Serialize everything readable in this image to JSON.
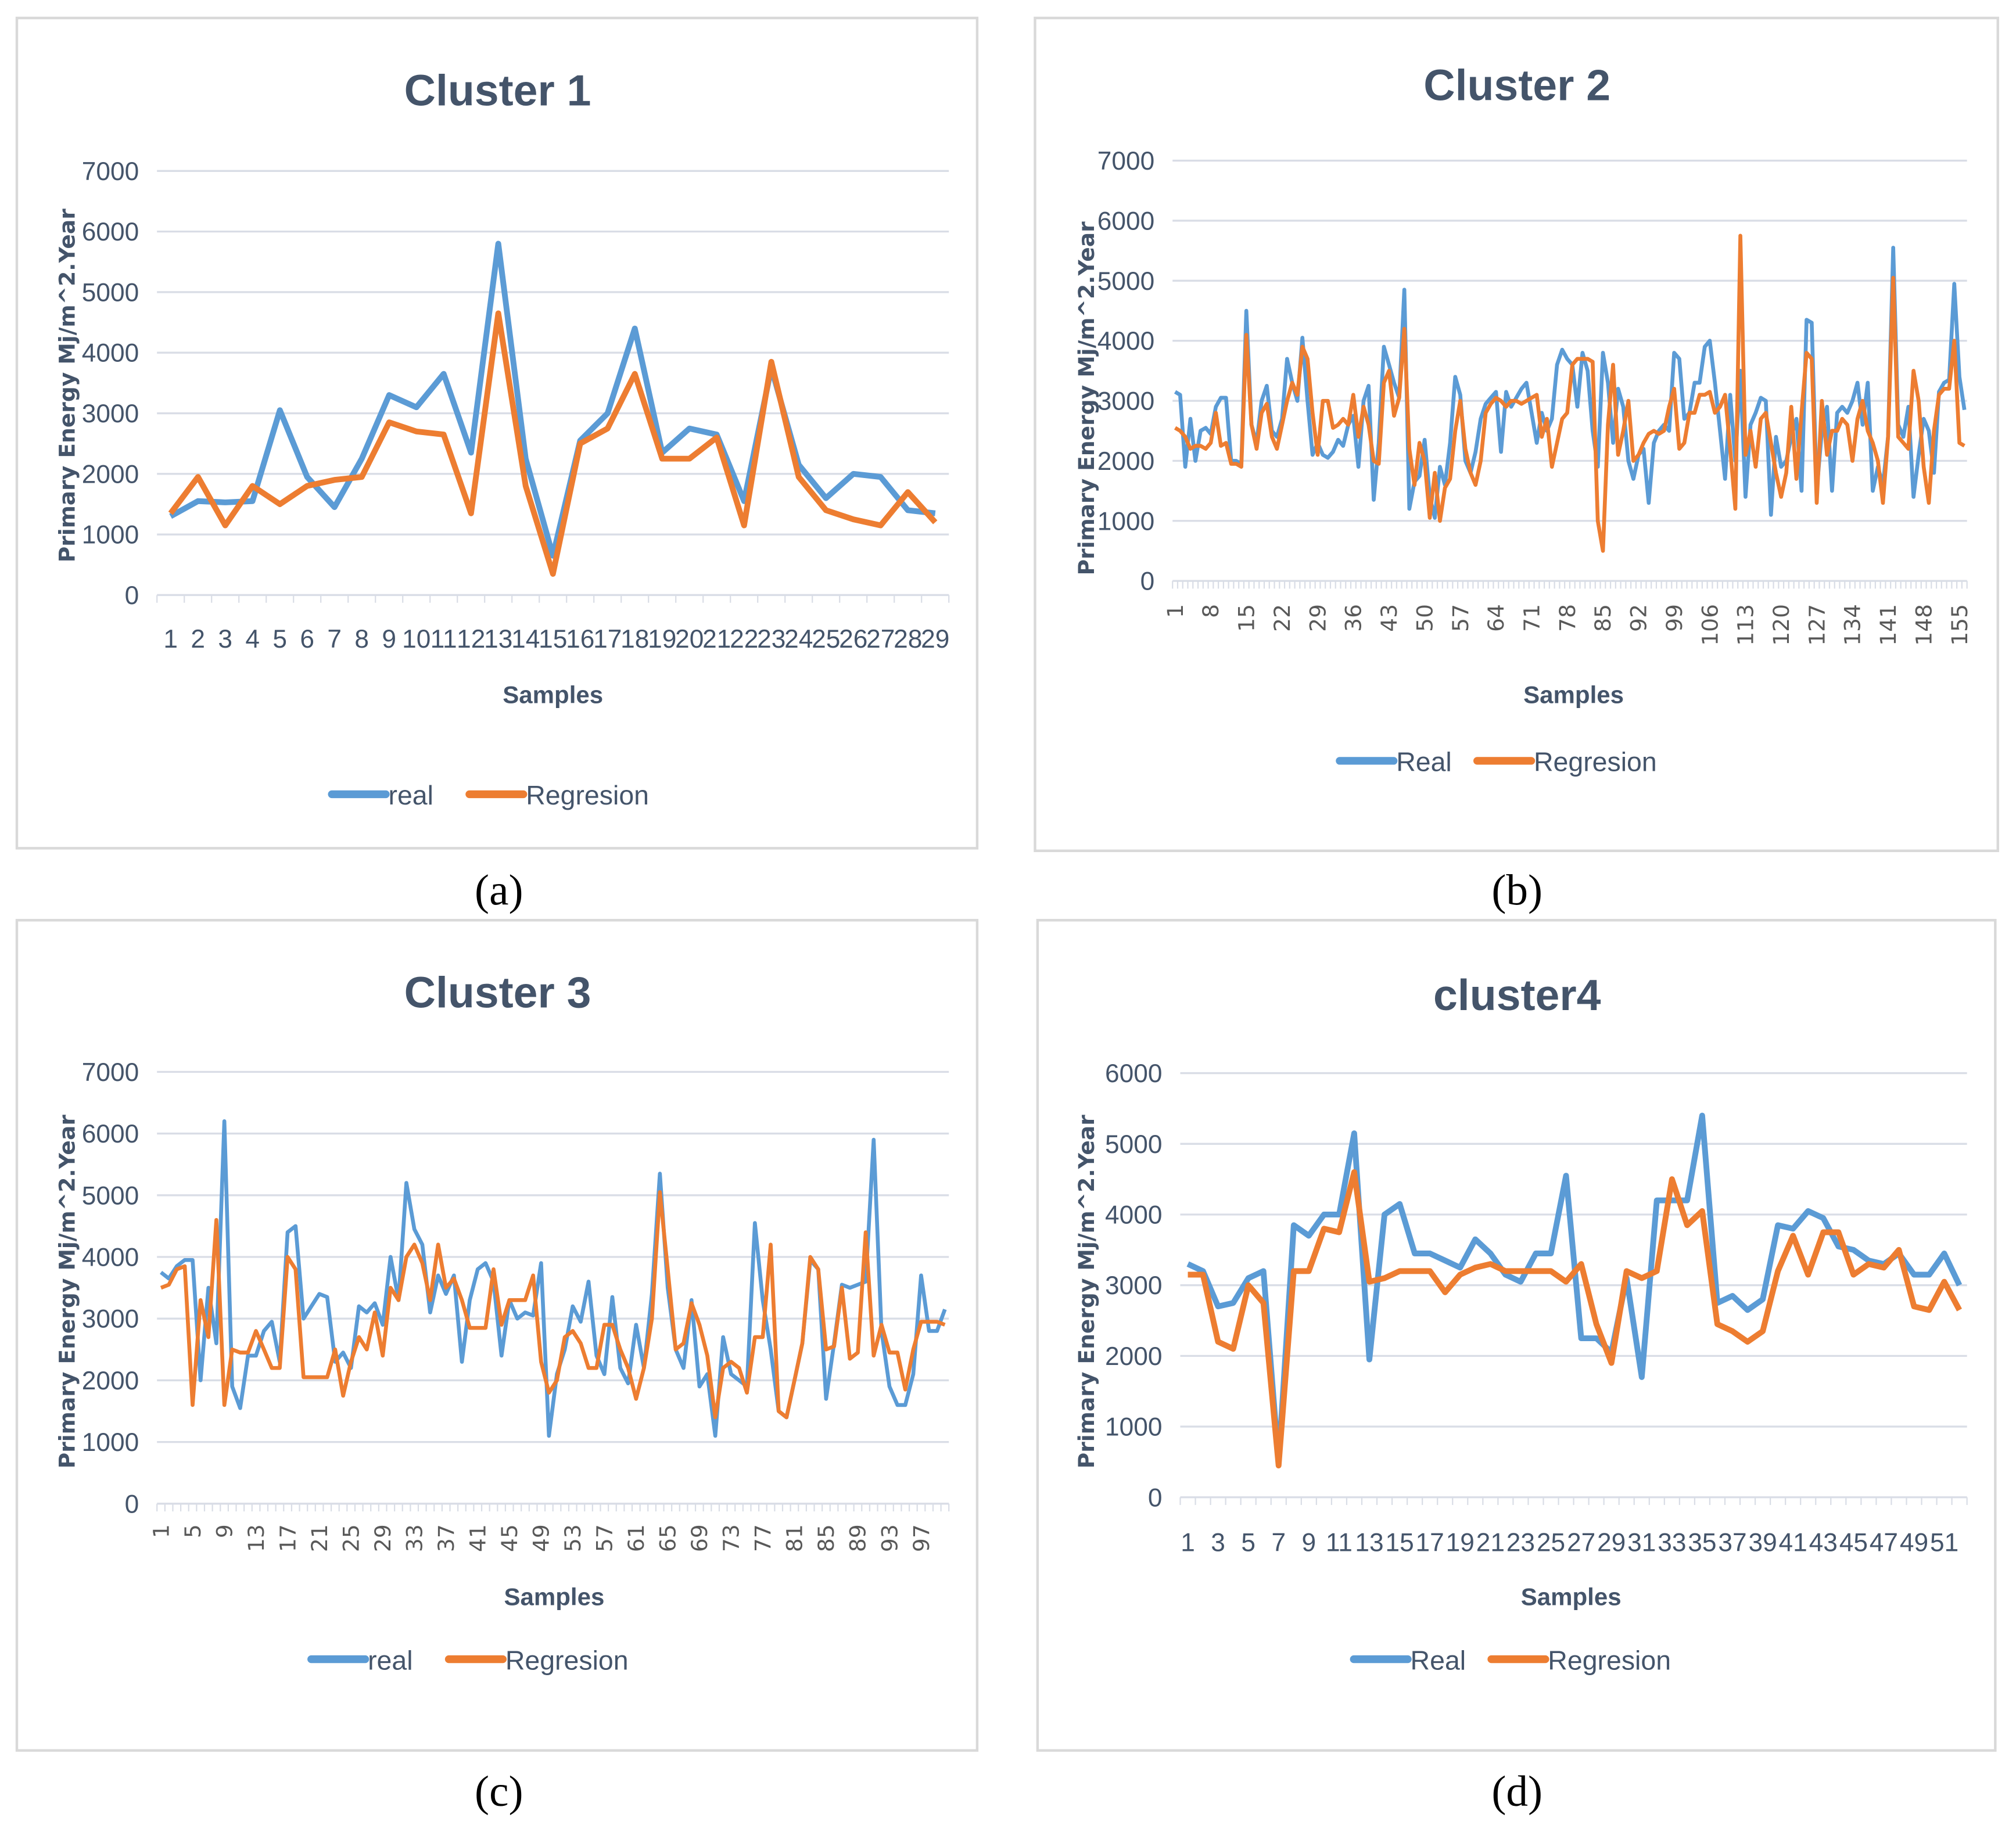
{
  "chart_data": [
    {
      "type": "line",
      "panel_label": "(a)",
      "title": "Cluster 1",
      "xlabel": "Samples",
      "ylabel": "Primary Energy Mj/m^2.Year",
      "ylim": [
        0,
        7000
      ],
      "yticks": [
        0,
        1000,
        2000,
        3000,
        4000,
        5000,
        6000,
        7000
      ],
      "x_tick_labels": [
        "1",
        "2",
        "3",
        "4",
        "5",
        "6",
        "7",
        "8",
        "9",
        "10",
        "11",
        "12",
        "13",
        "14",
        "15",
        "16",
        "17",
        "18",
        "19",
        "20",
        "21",
        "22",
        "23",
        "24",
        "25",
        "26",
        "27",
        "28",
        "29"
      ],
      "x_tick_orientation": "horizontal",
      "grid": true,
      "legend": "bottom",
      "series": [
        {
          "name": "real",
          "color": "#5b9bd5",
          "values": [
            1300,
            1550,
            1530,
            1550,
            3050,
            1950,
            1450,
            2250,
            3300,
            3100,
            3650,
            2350,
            5800,
            2250,
            650,
            2550,
            3000,
            4400,
            2350,
            2750,
            2650,
            1550,
            3750,
            2150,
            1600,
            2000,
            1950,
            1400,
            1350
          ]
        },
        {
          "name": "Regresion",
          "color": "#ed7d31",
          "values": [
            1350,
            1950,
            1150,
            1800,
            1500,
            1800,
            1900,
            1950,
            2850,
            2700,
            2650,
            1350,
            4650,
            1800,
            350,
            2500,
            2750,
            3650,
            2250,
            2250,
            2600,
            1150,
            3850,
            1950,
            1400,
            1250,
            1150,
            1700,
            1200
          ]
        }
      ]
    },
    {
      "type": "line",
      "panel_label": "(b)",
      "title": "Cluster 2",
      "xlabel": "Samples",
      "ylabel": "Primary Energy Mj/m^2.Year",
      "ylim": [
        0,
        7000
      ],
      "yticks": [
        0,
        1000,
        2000,
        3000,
        4000,
        5000,
        6000,
        7000
      ],
      "x_tick_labels": [
        "1",
        "8",
        "15",
        "22",
        "29",
        "36",
        "43",
        "50",
        "57",
        "64",
        "71",
        "78",
        "85",
        "92",
        "99",
        "106",
        "113",
        "120",
        "127",
        "134",
        "141",
        "148",
        "155"
      ],
      "x_tick_orientation": "vertical",
      "grid": true,
      "legend": "bottom",
      "series": [
        {
          "name": "Real",
          "color": "#5b9bd5",
          "values": [
            3150,
            3100,
            1900,
            2700,
            2000,
            2500,
            2550,
            2450,
            2900,
            3050,
            3050,
            2000,
            2000,
            1950,
            4500,
            2600,
            2300,
            3000,
            3250,
            2500,
            2400,
            2700,
            3700,
            3300,
            3000,
            4050,
            3000,
            2100,
            2300,
            2100,
            2050,
            2150,
            2350,
            2250,
            2600,
            2750,
            1900,
            3000,
            3250,
            1350,
            2300,
            3900,
            3600,
            3300,
            3050,
            4850,
            1200,
            1650,
            1750,
            2350,
            1400,
            1050,
            1900,
            1600,
            2300,
            3400,
            3100,
            2000,
            1800,
            2150,
            2700,
            2950,
            3050,
            3150,
            2150,
            3150,
            2900,
            3050,
            3200,
            3300,
            2800,
            2300,
            2800,
            2500,
            2700,
            3600,
            3850,
            3700,
            3600,
            2900,
            3800,
            3500,
            2500,
            1900,
            3800,
            3300,
            2300,
            3200,
            2900,
            2000,
            1700,
            2100,
            2200,
            1300,
            2300,
            2500,
            2600,
            2500,
            3800,
            3700,
            2700,
            2800,
            3300,
            3300,
            3900,
            4000,
            3300,
            2500,
            1700,
            3100,
            2000,
            3500,
            1400,
            2600,
            2800,
            3050,
            3000,
            1100,
            2400,
            1900,
            2000,
            2400,
            2700,
            1500,
            4350,
            4300,
            1500,
            2500,
            2900,
            1500,
            2800,
            2900,
            2800,
            3000,
            3300,
            2600,
            3300,
            1500,
            1900,
            1600,
            2400,
            5550,
            2600,
            2400,
            2900,
            1400,
            2100,
            2700,
            2500,
            1800,
            3150,
            3300,
            3350,
            4950,
            3400,
            2850
          ]
        },
        {
          "name": "Regresion",
          "color": "#ed7d31",
          "values": [
            2550,
            2500,
            2400,
            2200,
            2250,
            2250,
            2200,
            2300,
            2800,
            2250,
            2300,
            1950,
            1950,
            1900,
            4100,
            2600,
            2200,
            2800,
            2950,
            2400,
            2200,
            2600,
            3000,
            3300,
            3100,
            3900,
            3700,
            2800,
            2100,
            3000,
            3000,
            2550,
            2600,
            2700,
            2600,
            3100,
            2400,
            2900,
            2600,
            2000,
            1950,
            3300,
            3500,
            2750,
            3050,
            4200,
            2200,
            1600,
            2300,
            2000,
            1050,
            1800,
            1000,
            1550,
            1700,
            2500,
            3000,
            2200,
            1800,
            1600,
            2000,
            2800,
            2950,
            3050,
            3000,
            2900,
            3000,
            3000,
            2950,
            3000,
            3050,
            3100,
            2400,
            2700,
            1900,
            2300,
            2700,
            2800,
            3600,
            3700,
            3700,
            3700,
            3650,
            1000,
            500,
            2600,
            3600,
            2100,
            2500,
            3000,
            2000,
            2100,
            2300,
            2450,
            2500,
            2450,
            2500,
            2900,
            3200,
            2200,
            2300,
            2800,
            2800,
            3100,
            3100,
            3150,
            2800,
            2900,
            3100,
            2200,
            1200,
            5750,
            2100,
            2500,
            1900,
            2700,
            2800,
            2300,
            1800,
            1400,
            1800,
            2900,
            1700,
            2800,
            3800,
            3700,
            1300,
            3000,
            2100,
            2500,
            2500,
            2700,
            2600,
            2000,
            2700,
            3000,
            2500,
            2300,
            2000,
            1300,
            2400,
            5050,
            2400,
            2300,
            2200,
            3500,
            3000,
            1900,
            1300,
            2500,
            3100,
            3200,
            3200,
            4000,
            2300,
            2250
          ]
        }
      ]
    },
    {
      "type": "line",
      "panel_label": "(c)",
      "title": "Cluster 3",
      "xlabel": "Samples",
      "ylabel": "Primary Energy Mj/m^2.Year",
      "ylim": [
        0,
        7000
      ],
      "yticks": [
        0,
        1000,
        2000,
        3000,
        4000,
        5000,
        6000,
        7000
      ],
      "x_tick_labels": [
        "1",
        "5",
        "9",
        "13",
        "17",
        "21",
        "25",
        "29",
        "33",
        "37",
        "41",
        "45",
        "49",
        "53",
        "57",
        "61",
        "65",
        "69",
        "73",
        "77",
        "81",
        "85",
        "89",
        "93",
        "97"
      ],
      "x_tick_orientation": "vertical",
      "grid": true,
      "legend": "bottom",
      "series": [
        {
          "name": "real",
          "color": "#5b9bd5",
          "values": [
            3750,
            3650,
            3850,
            3950,
            3950,
            2000,
            3500,
            2600,
            6200,
            1900,
            1550,
            2400,
            2400,
            2800,
            2950,
            2300,
            4400,
            4500,
            3000,
            3200,
            3400,
            3350,
            2300,
            2450,
            2200,
            3200,
            3100,
            3250,
            2900,
            4000,
            3300,
            5200,
            4450,
            4200,
            3100,
            3700,
            3400,
            3700,
            2300,
            3300,
            3800,
            3900,
            3600,
            2400,
            3300,
            3000,
            3100,
            3050,
            3900,
            1100,
            2100,
            2500,
            3200,
            2950,
            3600,
            2400,
            2100,
            3350,
            2200,
            1950,
            2900,
            2200,
            3400,
            5350,
            3500,
            2500,
            2200,
            3300,
            1900,
            2100,
            1100,
            2700,
            2100,
            2000,
            1900,
            4550,
            3300,
            2500,
            1500,
            1400,
            2000,
            2600,
            3950,
            3800,
            1700,
            2600,
            3550,
            3500,
            3550,
            3600,
            5900,
            2800,
            1900,
            1600,
            1600,
            2100,
            3700,
            2800,
            2800,
            3150
          ]
        },
        {
          "name": "Regresion",
          "color": "#ed7d31",
          "values": [
            3500,
            3550,
            3800,
            3850,
            1600,
            3300,
            2700,
            4600,
            1600,
            2500,
            2450,
            2450,
            2800,
            2500,
            2200,
            2200,
            4000,
            3800,
            2050,
            2050,
            2050,
            2050,
            2500,
            1750,
            2300,
            2700,
            2500,
            3100,
            2400,
            3500,
            3300,
            4000,
            4200,
            3900,
            3300,
            4200,
            3500,
            3650,
            3300,
            2850,
            2850,
            2850,
            3800,
            2900,
            3300,
            3300,
            3300,
            3700,
            2300,
            1800,
            2000,
            2700,
            2800,
            2600,
            2200,
            2200,
            2900,
            2900,
            2500,
            2200,
            1700,
            2200,
            3000,
            5050,
            3800,
            2500,
            2600,
            3250,
            2900,
            2400,
            1400,
            2200,
            2300,
            2200,
            1800,
            2700,
            2700,
            4200,
            1500,
            1400,
            2000,
            2600,
            4000,
            3800,
            2500,
            2550,
            3500,
            2350,
            2450,
            4400,
            2400,
            2900,
            2450,
            2450,
            1850,
            2500,
            2950,
            2950,
            2950,
            2900
          ]
        }
      ]
    },
    {
      "type": "line",
      "panel_label": "(d)",
      "title": "cluster4",
      "xlabel": "Samples",
      "ylabel": "Primary Energy Mj/m^2.Year",
      "ylim": [
        0,
        6000
      ],
      "yticks": [
        0,
        1000,
        2000,
        3000,
        4000,
        5000,
        6000
      ],
      "x_tick_labels": [
        "1",
        "3",
        "5",
        "7",
        "9",
        "11",
        "13",
        "15",
        "17",
        "19",
        "21",
        "23",
        "25",
        "27",
        "29",
        "31",
        "33",
        "35",
        "37",
        "39",
        "41",
        "43",
        "45",
        "47",
        "49",
        "51"
      ],
      "x_tick_orientation": "horizontal",
      "grid": true,
      "legend": "bottom",
      "series": [
        {
          "name": "Real",
          "color": "#5b9bd5",
          "values": [
            3300,
            3200,
            2700,
            2750,
            3100,
            3200,
            500,
            3850,
            3700,
            4000,
            4000,
            5150,
            1950,
            4000,
            4150,
            3450,
            3450,
            3350,
            3250,
            3650,
            3450,
            3150,
            3050,
            3450,
            3450,
            4550,
            2250,
            2250,
            2050,
            3100,
            1700,
            4200,
            4200,
            4200,
            5400,
            2750,
            2850,
            2650,
            2800,
            3850,
            3800,
            4050,
            3950,
            3550,
            3500,
            3350,
            3300,
            3450,
            3150,
            3150,
            3450,
            3000
          ]
        },
        {
          "name": "Regresion",
          "color": "#ed7d31",
          "values": [
            3150,
            3150,
            2200,
            2100,
            3000,
            2750,
            450,
            3200,
            3200,
            3800,
            3750,
            4600,
            3050,
            3100,
            3200,
            3200,
            3200,
            2900,
            3150,
            3250,
            3300,
            3200,
            3200,
            3200,
            3200,
            3050,
            3300,
            2450,
            1900,
            3200,
            3100,
            3200,
            4500,
            3850,
            4050,
            2450,
            2350,
            2200,
            2350,
            3200,
            3700,
            3150,
            3750,
            3750,
            3150,
            3300,
            3250,
            3500,
            2700,
            2650,
            3050,
            2650
          ]
        }
      ]
    }
  ]
}
